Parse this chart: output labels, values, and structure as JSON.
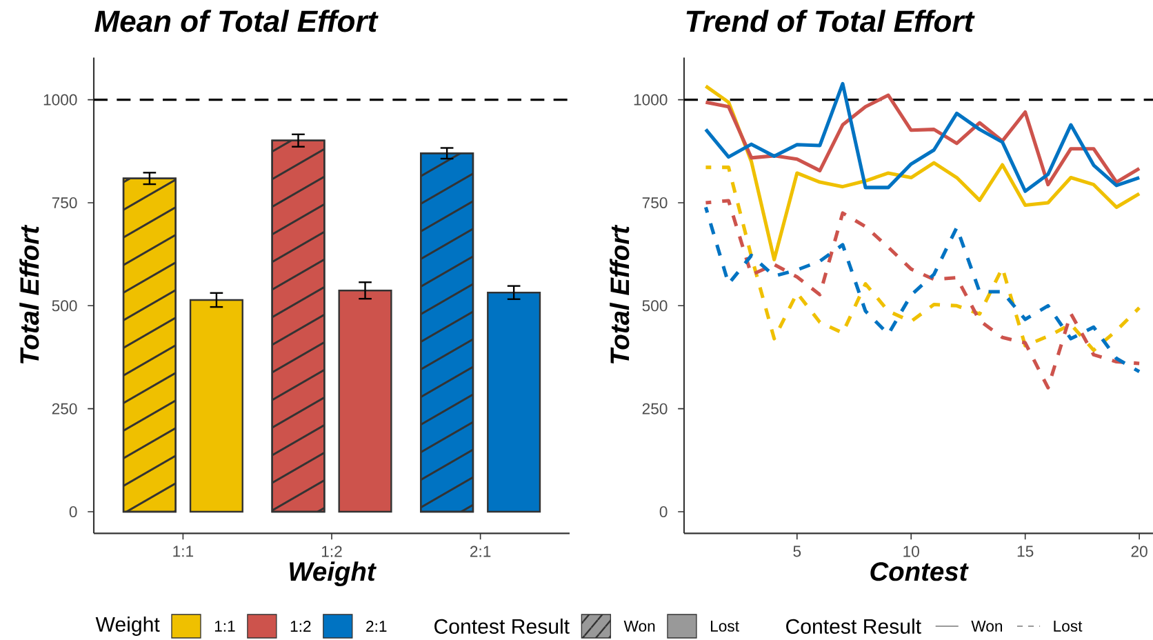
{
  "chart_data": [
    {
      "type": "bar",
      "title": "Mean of Total Effort",
      "xlabel": "Weight",
      "ylabel": "Total Effort",
      "legend_title": "Contest Result",
      "legend": "bottom",
      "categories": [
        "1:1",
        "1:2",
        "2:1"
      ],
      "series": [
        {
          "name": "Won",
          "colors": [
            "#EFC000",
            "#CD534C",
            "#0073C2"
          ],
          "values": [
            809,
            901,
            870
          ],
          "errors": [
            14,
            15,
            13
          ]
        },
        {
          "name": "Lost",
          "colors": [
            "#EFC000",
            "#CD534C",
            "#0073C2"
          ],
          "values": [
            514,
            537,
            532
          ],
          "errors": [
            17,
            20,
            16
          ]
        }
      ],
      "ylim": [
        -52.5,
        1102.5
      ],
      "yticks": [
        0,
        250,
        500,
        750,
        1000
      ],
      "ref_lines": [
        {
          "axis": "y",
          "value": 1000,
          "line_style": "dashed",
          "color": "#000000"
        }
      ]
    },
    {
      "type": "line",
      "title": "Trend of Total Effort",
      "xlabel": "Contest",
      "ylabel": "Total Effort",
      "legend_title": "Contest Result",
      "x": [
        1,
        2,
        3,
        4,
        5,
        6,
        7,
        8,
        9,
        10,
        11,
        12,
        13,
        14,
        15,
        16,
        17,
        18,
        19,
        20
      ],
      "series": [
        {
          "color": "#EFC000",
          "line_style": "solid",
          "values": [
            1033,
            994,
            850,
            612,
            822,
            800,
            789,
            803,
            822,
            811,
            847,
            811,
            756,
            842,
            744,
            750,
            811,
            794,
            739,
            772
          ]
        },
        {
          "color": "#CD534C",
          "line_style": "solid",
          "values": [
            994,
            983,
            859,
            864,
            856,
            828,
            939,
            983,
            1011,
            926,
            928,
            894,
            944,
            900,
            970,
            794,
            881,
            881,
            800,
            833
          ]
        },
        {
          "color": "#0073C2",
          "line_style": "solid",
          "values": [
            928,
            861,
            892,
            863,
            891,
            889,
            1039,
            787,
            787,
            844,
            878,
            967,
            928,
            897,
            778,
            819,
            939,
            841,
            792,
            811
          ]
        },
        {
          "color": "#EFC000",
          "line_style": "dashed",
          "values": [
            836,
            836,
            620,
            420,
            531,
            460,
            434,
            553,
            487,
            462,
            503,
            500,
            480,
            592,
            403,
            426,
            455,
            392,
            440,
            495
          ]
        },
        {
          "color": "#CD534C",
          "line_style": "dashed",
          "values": [
            750,
            755,
            575,
            600,
            570,
            527,
            725,
            692,
            642,
            589,
            564,
            568,
            464,
            423,
            410,
            301,
            481,
            381,
            364,
            360
          ]
        },
        {
          "color": "#0073C2",
          "line_style": "dashed",
          "values": [
            739,
            553,
            622,
            572,
            587,
            608,
            648,
            487,
            431,
            526,
            576,
            690,
            534,
            534,
            467,
            500,
            420,
            448,
            372,
            340
          ]
        }
      ],
      "xlim": [
        0.05,
        20.6
      ],
      "xticks": [
        5,
        10,
        15,
        20
      ],
      "ylim": [
        -52.5,
        1102.5
      ],
      "yticks": [
        0,
        250,
        500,
        750,
        1000
      ],
      "ref_lines": [
        {
          "axis": "y",
          "value": 1000,
          "line_style": "dashed",
          "color": "#000000"
        }
      ]
    }
  ]
}
